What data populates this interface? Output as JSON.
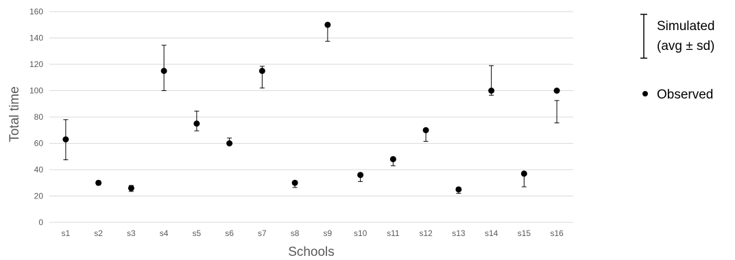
{
  "chart_data": {
    "type": "scatter",
    "title": "",
    "xlabel": "Schools",
    "ylabel": "Total time",
    "ylim": [
      0,
      160
    ],
    "yticks": [
      0,
      20,
      40,
      60,
      80,
      100,
      120,
      140,
      160
    ],
    "grid": true,
    "legend_position": "right",
    "categories": [
      "s1",
      "s2",
      "s3",
      "s4",
      "s5",
      "s6",
      "s7",
      "s8",
      "s9",
      "s10",
      "s11",
      "s12",
      "s13",
      "s14",
      "s15",
      "s16"
    ],
    "series": [
      {
        "name": "Observed",
        "marker": "dot",
        "values": [
          63,
          30,
          26,
          115,
          75,
          60,
          115,
          30,
          150,
          36,
          48,
          70,
          25,
          100,
          37,
          100
        ]
      },
      {
        "name": "Simulated",
        "marker": "error-bar",
        "low": [
          47.5,
          28.5,
          23.5,
          100,
          69.5,
          59,
          102,
          26.5,
          137.5,
          31,
          43,
          61.5,
          22,
          96.5,
          27,
          75.5
        ],
        "high": [
          78,
          31.5,
          28,
          134.5,
          84.5,
          64,
          118.5,
          31.5,
          151,
          36.5,
          49,
          70.5,
          26.5,
          119,
          37.5,
          92.5
        ]
      }
    ],
    "legend": {
      "simulated_line1": "Simulated",
      "simulated_line2": "(avg ± sd)",
      "observed": "Observed"
    },
    "colors": {
      "marker": "#000000",
      "text": "#595959",
      "grid": "#d9d9d9"
    }
  }
}
